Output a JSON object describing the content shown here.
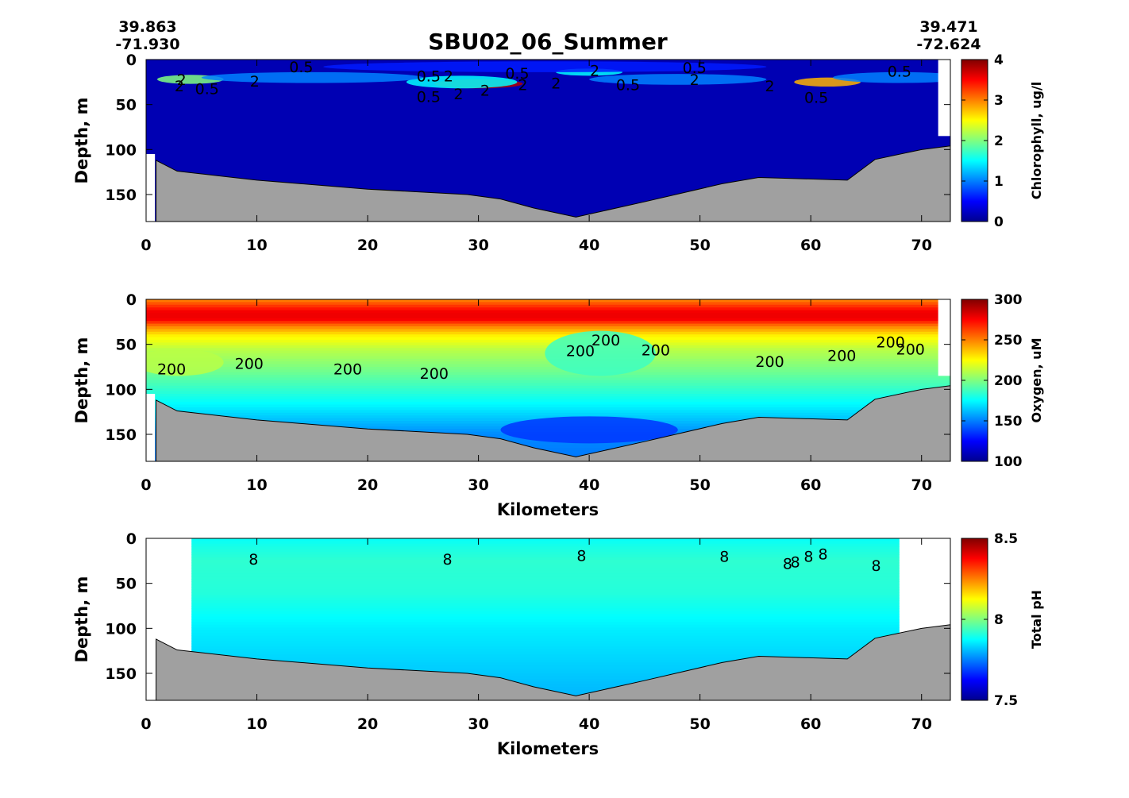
{
  "title": "SBU02_06_Summer",
  "corner_left": {
    "lat": "39.863",
    "lon": "-71.930"
  },
  "corner_right": {
    "lat": "39.471",
    "lon": "-72.624"
  },
  "colors": {
    "bathymetry": "#a0a0a0",
    "colormap": "jet",
    "mask": "#ffffff"
  },
  "chart_data": [
    {
      "type": "heatmap",
      "name": "Chlorophyll section",
      "title": "SBU02_06_Summer",
      "xlabel": "",
      "ylabel": "Depth, m",
      "colorbar_label": "Chlorophyll, ug/l",
      "xlim": [
        0,
        72.6
      ],
      "ylim": [
        180,
        0
      ],
      "xticks": [
        "0",
        "10",
        "20",
        "30",
        "40",
        "50",
        "60",
        "70"
      ],
      "yticks": [
        "0",
        "50",
        "100",
        "150"
      ],
      "clim": [
        0,
        4
      ],
      "colorbar_ticks": [
        "0",
        "1",
        "2",
        "3",
        "4"
      ],
      "background_value": 0.2,
      "features": [
        {
          "x": 30,
          "depth": 27,
          "sx": 4,
          "sz": 5,
          "value": 3.8
        },
        {
          "x": 28.5,
          "depth": 25,
          "sx": 5,
          "sz": 7,
          "value": 1.5
        },
        {
          "x": 61.5,
          "depth": 25,
          "sx": 3,
          "sz": 5,
          "value": 2.8
        },
        {
          "x": 4,
          "depth": 22,
          "sx": 3,
          "sz": 5,
          "value": 2.0
        },
        {
          "x": 40,
          "depth": 14,
          "sx": 3,
          "sz": 4,
          "value": 1.5
        },
        {
          "x": 48,
          "depth": 22,
          "sx": 8,
          "sz": 6,
          "value": 1.0
        },
        {
          "x": 15,
          "depth": 20,
          "sx": 10,
          "sz": 6,
          "value": 1.0
        },
        {
          "x": 68,
          "depth": 20,
          "sx": 6,
          "sz": 6,
          "value": 1.0
        },
        {
          "x": 36,
          "depth": 8,
          "sx": 20,
          "sz": 6,
          "value": 0.6
        }
      ],
      "contour_labels": [
        {
          "text": "0.5",
          "x": 14,
          "depth": 8
        },
        {
          "text": "2",
          "x": 3.2,
          "depth": 22
        },
        {
          "text": "2",
          "x": 3,
          "depth": 29
        },
        {
          "text": "0.5",
          "x": 5.5,
          "depth": 32
        },
        {
          "text": "2",
          "x": 9.8,
          "depth": 24
        },
        {
          "text": "0.5",
          "x": 25.5,
          "depth": 18
        },
        {
          "text": "2",
          "x": 27.3,
          "depth": 18
        },
        {
          "text": "0.5",
          "x": 25.5,
          "depth": 41
        },
        {
          "text": "2",
          "x": 28.2,
          "depth": 38
        },
        {
          "text": "2",
          "x": 30.6,
          "depth": 34
        },
        {
          "text": "0.5",
          "x": 33.5,
          "depth": 15
        },
        {
          "text": "2",
          "x": 34,
          "depth": 28
        },
        {
          "text": "2",
          "x": 37,
          "depth": 26
        },
        {
          "text": "2",
          "x": 40.5,
          "depth": 12
        },
        {
          "text": "0.5",
          "x": 43.5,
          "depth": 28
        },
        {
          "text": "0.5",
          "x": 49.5,
          "depth": 9
        },
        {
          "text": "2",
          "x": 49.5,
          "depth": 22
        },
        {
          "text": "2",
          "x": 56.3,
          "depth": 29
        },
        {
          "text": "0.5",
          "x": 60.5,
          "depth": 42
        },
        {
          "text": "0.5",
          "x": 68,
          "depth": 13
        }
      ]
    },
    {
      "type": "heatmap",
      "name": "Oxygen section",
      "title": "",
      "xlabel": "Kilometers",
      "ylabel": "Depth, m",
      "colorbar_label": "Oxygen, uM",
      "xlim": [
        0,
        72.6
      ],
      "ylim": [
        180,
        0
      ],
      "xticks": [
        "0",
        "10",
        "20",
        "30",
        "40",
        "50",
        "60",
        "70"
      ],
      "yticks": [
        "0",
        "50",
        "100",
        "150"
      ],
      "clim": [
        100,
        300
      ],
      "colorbar_ticks": [
        "100",
        "150",
        "200",
        "250",
        "300"
      ],
      "profile": [
        {
          "depth": 0,
          "value": 248
        },
        {
          "depth": 6,
          "value": 262
        },
        {
          "depth": 14,
          "value": 278
        },
        {
          "depth": 22,
          "value": 278
        },
        {
          "depth": 30,
          "value": 250
        },
        {
          "depth": 40,
          "value": 228
        },
        {
          "depth": 55,
          "value": 212
        },
        {
          "depth": 75,
          "value": 200
        },
        {
          "depth": 95,
          "value": 188
        },
        {
          "depth": 120,
          "value": 172
        },
        {
          "depth": 150,
          "value": 152
        },
        {
          "depth": 180,
          "value": 148
        }
      ],
      "features": [
        {
          "x": 41,
          "depth": 60,
          "sx": 5,
          "sz": 25,
          "value": -22
        },
        {
          "x": 40,
          "depth": 145,
          "sx": 8,
          "sz": 15,
          "value": -20
        },
        {
          "x": 3,
          "depth": 70,
          "sx": 4,
          "sz": 15,
          "value": 8
        }
      ],
      "contour_labels": [
        {
          "text": "200",
          "x": 2.3,
          "depth": 77
        },
        {
          "text": "200",
          "x": 9.3,
          "depth": 71
        },
        {
          "text": "200",
          "x": 18.2,
          "depth": 77
        },
        {
          "text": "200",
          "x": 26,
          "depth": 82
        },
        {
          "text": "200",
          "x": 39.2,
          "depth": 57
        },
        {
          "text": "200",
          "x": 41.5,
          "depth": 45
        },
        {
          "text": "200",
          "x": 46,
          "depth": 56
        },
        {
          "text": "200",
          "x": 56.3,
          "depth": 69
        },
        {
          "text": "200",
          "x": 62.8,
          "depth": 62
        },
        {
          "text": "200",
          "x": 67.2,
          "depth": 47
        },
        {
          "text": "200",
          "x": 69,
          "depth": 55
        }
      ]
    },
    {
      "type": "heatmap",
      "name": "pH section",
      "title": "",
      "xlabel": "Kilometers",
      "ylabel": "Depth, m",
      "colorbar_label": "Total pH",
      "xlim": [
        0,
        72.6
      ],
      "ylim": [
        180,
        0
      ],
      "xticks": [
        "0",
        "10",
        "20",
        "30",
        "40",
        "50",
        "60",
        "70"
      ],
      "yticks": [
        "0",
        "50",
        "100",
        "150"
      ],
      "clim": [
        7.5,
        8.5
      ],
      "colorbar_ticks": [
        "7.5",
        "8",
        "8.5"
      ],
      "data_xrange": [
        4.1,
        68
      ],
      "profile": [
        {
          "depth": 0,
          "value": 7.88
        },
        {
          "depth": 10,
          "value": 7.9
        },
        {
          "depth": 25,
          "value": 7.92
        },
        {
          "depth": 60,
          "value": 7.91
        },
        {
          "depth": 100,
          "value": 7.86
        },
        {
          "depth": 140,
          "value": 7.83
        },
        {
          "depth": 180,
          "value": 7.8
        }
      ],
      "features": [],
      "contour_labels": [
        {
          "text": "8",
          "x": 9.7,
          "depth": 23
        },
        {
          "text": "8",
          "x": 27.2,
          "depth": 23
        },
        {
          "text": "8",
          "x": 39.3,
          "depth": 19
        },
        {
          "text": "8",
          "x": 52.2,
          "depth": 20
        },
        {
          "text": "8",
          "x": 57.9,
          "depth": 28
        },
        {
          "text": "8",
          "x": 58.6,
          "depth": 26
        },
        {
          "text": "8",
          "x": 59.8,
          "depth": 20
        },
        {
          "text": "8",
          "x": 61.1,
          "depth": 17
        },
        {
          "text": "8",
          "x": 65.9,
          "depth": 30
        }
      ]
    }
  ],
  "bathymetry": [
    {
      "x": 0.9,
      "depth": 112
    },
    {
      "x": 2.8,
      "depth": 124
    },
    {
      "x": 10,
      "depth": 134
    },
    {
      "x": 20,
      "depth": 144
    },
    {
      "x": 29,
      "depth": 150
    },
    {
      "x": 32,
      "depth": 155
    },
    {
      "x": 35,
      "depth": 165
    },
    {
      "x": 38.8,
      "depth": 175
    },
    {
      "x": 45,
      "depth": 158
    },
    {
      "x": 52,
      "depth": 138
    },
    {
      "x": 55.3,
      "depth": 131
    },
    {
      "x": 63.3,
      "depth": 134
    },
    {
      "x": 65.8,
      "depth": 111
    },
    {
      "x": 70,
      "depth": 100
    },
    {
      "x": 72.6,
      "depth": 96
    }
  ]
}
